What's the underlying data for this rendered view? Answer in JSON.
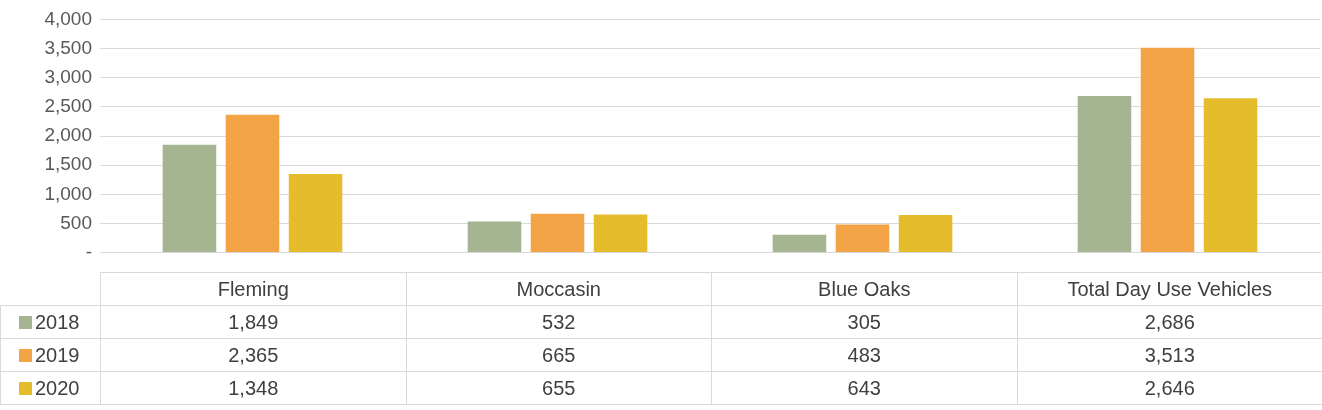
{
  "chart_data": {
    "type": "bar",
    "categories": [
      "Fleming",
      "Moccasin",
      "Blue Oaks",
      "Total Day Use Vehicles"
    ],
    "series": [
      {
        "name": "2018",
        "color": "#a5b592",
        "values": [
          1849,
          532,
          305,
          2686
        ],
        "value_labels": [
          "1,849",
          "532",
          "305",
          "2,686"
        ]
      },
      {
        "name": "2019",
        "color": "#f3a447",
        "values": [
          2365,
          665,
          483,
          3513
        ],
        "value_labels": [
          "2,365",
          "665",
          "483",
          "3,513"
        ]
      },
      {
        "name": "2020",
        "color": "#e4bc2c",
        "values": [
          1348,
          655,
          643,
          2646
        ],
        "value_labels": [
          "1,348",
          "655",
          "643",
          "2,646"
        ]
      }
    ],
    "ylim": [
      0,
      4000
    ],
    "yticks": [
      {
        "value": 0,
        "label": "-"
      },
      {
        "value": 500,
        "label": "500"
      },
      {
        "value": 1000,
        "label": "1,000"
      },
      {
        "value": 1500,
        "label": "1,500"
      },
      {
        "value": 2000,
        "label": "2,000"
      },
      {
        "value": 2500,
        "label": "2,500"
      },
      {
        "value": 3000,
        "label": "3,000"
      },
      {
        "value": 3500,
        "label": "3,500"
      },
      {
        "value": 4000,
        "label": "4,000"
      }
    ],
    "grid": "y",
    "legend": "bottom"
  }
}
